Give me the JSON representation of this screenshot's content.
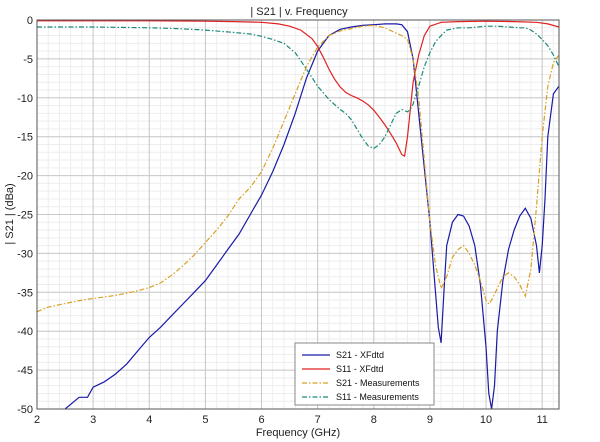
{
  "chart_data": {
    "type": "line",
    "title": "| S21 | v. Frequency",
    "xlabel": "Frequency (GHz)",
    "ylabel": "| S21 | (dBa)",
    "xlim": [
      2,
      11.3
    ],
    "ylim": [
      -50,
      0
    ],
    "xticks": [
      2,
      3,
      4,
      5,
      6,
      7,
      8,
      9,
      10,
      11
    ],
    "yticks": [
      0,
      -5,
      -10,
      -15,
      -20,
      -25,
      -30,
      -35,
      -40,
      -45,
      -50
    ],
    "grid": true,
    "minor_grid": true,
    "legend_position": "bottom-center",
    "series": [
      {
        "name": "S21 - XFdtd",
        "color": "#1a1aa6",
        "dash": "solid",
        "x": [
          2.5,
          2.75,
          2.9,
          3.0,
          3.2,
          3.4,
          3.6,
          3.8,
          4.0,
          4.2,
          4.4,
          4.6,
          4.8,
          5.0,
          5.2,
          5.4,
          5.6,
          5.8,
          6.0,
          6.2,
          6.4,
          6.6,
          6.8,
          7.0,
          7.2,
          7.4,
          7.6,
          7.8,
          8.0,
          8.2,
          8.4,
          8.5,
          8.6,
          8.7,
          8.8,
          8.9,
          9.0,
          9.1,
          9.15,
          9.2,
          9.25,
          9.3,
          9.4,
          9.5,
          9.6,
          9.7,
          9.8,
          9.9,
          10.0,
          10.05,
          10.1,
          10.15,
          10.2,
          10.3,
          10.4,
          10.5,
          10.6,
          10.7,
          10.8,
          10.9,
          10.95,
          11.0,
          11.05,
          11.1,
          11.2,
          11.3
        ],
        "y": [
          -50,
          -48.5,
          -48.5,
          -47.2,
          -46.5,
          -45.5,
          -44.2,
          -42.5,
          -40.8,
          -39.5,
          -38.0,
          -36.5,
          -35.0,
          -33.5,
          -31.5,
          -29.5,
          -27.5,
          -25.0,
          -22.5,
          -19.5,
          -16.0,
          -12.0,
          -7.5,
          -4.0,
          -2.0,
          -1.2,
          -0.9,
          -0.7,
          -0.6,
          -0.5,
          -0.5,
          -0.6,
          -1.5,
          -5.0,
          -12.0,
          -19.0,
          -26.0,
          -35.0,
          -39.5,
          -41.5,
          -35.0,
          -29.0,
          -26.0,
          -25.0,
          -25.2,
          -26.5,
          -29.0,
          -34.0,
          -42.0,
          -48.0,
          -50,
          -47.0,
          -40.0,
          -33.5,
          -29.5,
          -27.0,
          -25.2,
          -24.2,
          -25.5,
          -29.0,
          -32.5,
          -29.0,
          -23.0,
          -15.0,
          -9.5,
          -8.5
        ]
      },
      {
        "name": "S11 - XFdtd",
        "color": "#e02020",
        "dash": "solid",
        "x": [
          2.0,
          3.0,
          4.0,
          5.0,
          5.5,
          6.0,
          6.3,
          6.5,
          6.7,
          6.9,
          7.0,
          7.1,
          7.2,
          7.3,
          7.4,
          7.5,
          7.6,
          7.7,
          7.8,
          7.9,
          8.0,
          8.1,
          8.2,
          8.3,
          8.4,
          8.5,
          8.55,
          8.6,
          8.65,
          8.7,
          8.8,
          8.9,
          9.0,
          9.2,
          9.5,
          10.0,
          10.5,
          10.9,
          11.1,
          11.3
        ],
        "y": [
          -0.1,
          -0.1,
          -0.1,
          -0.15,
          -0.2,
          -0.3,
          -0.5,
          -0.8,
          -1.3,
          -2.4,
          -3.4,
          -4.8,
          -6.3,
          -7.6,
          -8.6,
          -9.3,
          -9.7,
          -10.0,
          -10.4,
          -10.9,
          -11.6,
          -12.5,
          -13.5,
          -14.6,
          -15.8,
          -17.3,
          -17.5,
          -15.0,
          -11.5,
          -8.0,
          -4.5,
          -2.0,
          -0.8,
          -0.3,
          -0.2,
          -0.15,
          -0.2,
          -0.3,
          -0.5,
          -0.9
        ]
      },
      {
        "name": "S21 - Measurements",
        "color": "#d9a020",
        "dash": "dashdot",
        "x": [
          2.0,
          2.1,
          2.2,
          2.4,
          2.6,
          2.8,
          3.0,
          3.2,
          3.4,
          3.6,
          3.8,
          4.0,
          4.2,
          4.4,
          4.6,
          4.8,
          5.0,
          5.2,
          5.4,
          5.6,
          5.8,
          6.0,
          6.2,
          6.4,
          6.6,
          6.8,
          7.0,
          7.2,
          7.4,
          7.6,
          7.8,
          8.0,
          8.2,
          8.4,
          8.5,
          8.6,
          8.7,
          8.8,
          8.9,
          9.0,
          9.1,
          9.2,
          9.3,
          9.4,
          9.5,
          9.6,
          9.7,
          9.8,
          9.9,
          10.0,
          10.05,
          10.1,
          10.2,
          10.3,
          10.4,
          10.5,
          10.6,
          10.7,
          10.8,
          10.9,
          11.0,
          11.1,
          11.2,
          11.3
        ],
        "y": [
          -37.5,
          -37.2,
          -36.9,
          -36.6,
          -36.3,
          -36.0,
          -35.8,
          -35.6,
          -35.4,
          -35.1,
          -34.8,
          -34.4,
          -33.8,
          -32.8,
          -31.6,
          -30.2,
          -28.6,
          -27.0,
          -25.2,
          -23.0,
          -21.5,
          -19.5,
          -16.5,
          -13.0,
          -9.5,
          -6.0,
          -3.5,
          -2.0,
          -1.4,
          -1.1,
          -0.8,
          -0.7,
          -1.0,
          -1.7,
          -2.0,
          -2.5,
          -5.0,
          -10.0,
          -18.0,
          -26.0,
          -31.5,
          -34.5,
          -33.0,
          -30.5,
          -29.5,
          -29.0,
          -30.0,
          -31.5,
          -33.5,
          -36.0,
          -36.5,
          -36.0,
          -34.5,
          -33.0,
          -32.5,
          -33.0,
          -34.0,
          -35.5,
          -32.0,
          -24.0,
          -15.0,
          -8.5,
          -5.5,
          -4.5
        ]
      },
      {
        "name": "S11 - Measurements",
        "color": "#1a8a7a",
        "dash": "dashdot",
        "x": [
          2.0,
          2.5,
          3.0,
          3.5,
          4.0,
          4.5,
          5.0,
          5.5,
          5.8,
          6.0,
          6.2,
          6.4,
          6.6,
          6.8,
          7.0,
          7.2,
          7.4,
          7.5,
          7.6,
          7.7,
          7.8,
          7.9,
          8.0,
          8.1,
          8.2,
          8.3,
          8.4,
          8.5,
          8.6,
          8.65,
          8.7,
          8.8,
          8.9,
          9.0,
          9.1,
          9.2,
          9.3,
          9.5,
          9.7,
          10.0,
          10.2,
          10.4,
          10.6,
          10.7,
          10.8,
          10.9,
          11.0,
          11.1,
          11.2,
          11.3
        ],
        "y": [
          -0.9,
          -0.9,
          -0.9,
          -0.95,
          -1.0,
          -1.1,
          -1.3,
          -1.6,
          -1.8,
          -2.1,
          -2.5,
          -3.0,
          -4.2,
          -6.3,
          -8.5,
          -10.2,
          -11.5,
          -12.0,
          -12.8,
          -14.0,
          -15.2,
          -16.2,
          -16.5,
          -16.0,
          -15.0,
          -13.5,
          -12.0,
          -11.5,
          -11.8,
          -11.5,
          -10.8,
          -8.5,
          -6.0,
          -4.2,
          -2.8,
          -2.0,
          -1.3,
          -1.0,
          -1.0,
          -0.8,
          -0.8,
          -0.9,
          -1.0,
          -1.0,
          -1.3,
          -1.8,
          -2.5,
          -3.3,
          -4.5,
          -6.0
        ]
      }
    ]
  }
}
